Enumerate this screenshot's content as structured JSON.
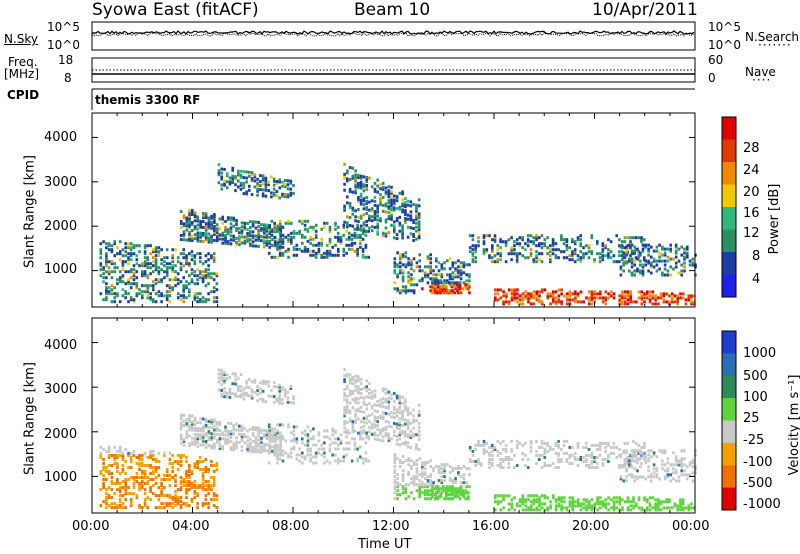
{
  "header": {
    "station": "Syowa East (fitACF)",
    "beam": "Beam 10",
    "date": "10/Apr/2011"
  },
  "noise_panel": {
    "left_label": "N.Sky",
    "right_label": "N.Search",
    "tick_top": "10^5",
    "tick_bottom": "10^0"
  },
  "freq_panel": {
    "left_label_1": "Freq.",
    "left_label_2": "[MHz]",
    "right_label": "Nave",
    "left_ticks": [
      "18",
      "8"
    ],
    "right_ticks": [
      "60",
      "0"
    ]
  },
  "cpid_panel": {
    "label": "CPID",
    "program": "themis 3300 RF"
  },
  "chart_data": [
    {
      "type": "heatmap",
      "quantity": "Power",
      "ylabel": "Slant Range [km]",
      "ylim": [
        180,
        4550
      ],
      "yticks": [
        "1000",
        "2000",
        "3000",
        "4000"
      ],
      "xlim_hours": [
        0,
        24
      ],
      "colorbar_label": "Power [dB]",
      "colorbar_ticks": [
        "4",
        "8",
        "12",
        "16",
        "20",
        "24",
        "28"
      ],
      "colors": [
        "#1e22e8",
        "#1c3da8",
        "#2a8f63",
        "#2fb87d",
        "#f0c800",
        "#f18a00",
        "#e03a00",
        "#e00000"
      ]
    },
    {
      "type": "heatmap",
      "quantity": "Velocity",
      "ylabel": "Slant Range [km]",
      "ylim": [
        180,
        4550
      ],
      "yticks": [
        "1000",
        "2000",
        "3000",
        "4000"
      ],
      "xlim_hours": [
        0,
        24
      ],
      "colorbar_label": "Velocity [m s⁻¹]",
      "colorbar_ticks": [
        "1000",
        "500",
        "100",
        "25",
        "-25",
        "-100",
        "-500",
        "-1000"
      ],
      "colors": [
        "#1e3cd0",
        "#2a6fb5",
        "#2e8a5a",
        "#5ed43c",
        "#c8c8c8",
        "#f4a000",
        "#f07000",
        "#e00000"
      ]
    }
  ],
  "time_axis": {
    "ticks": [
      "00:00",
      "04:00",
      "08:00",
      "12:00",
      "16:00",
      "20:00",
      "00:00"
    ],
    "label": "Time UT"
  }
}
